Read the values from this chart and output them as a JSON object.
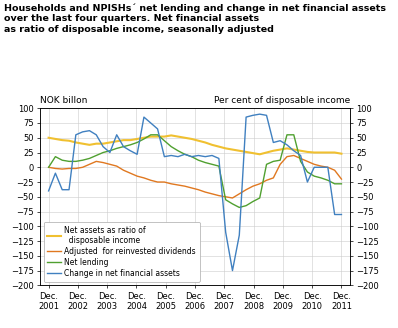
{
  "title_line1": "Households and NPISHs´ net lending and change in net financial assets",
  "title_line2": "over the last four quarters. Net financial assets",
  "title_line3": "as ratio of disposable income, seasonally adjusted",
  "ylabel_left": "NOK billon",
  "ylabel_right": "Per cent of disposable income",
  "ylim": [
    -200,
    100
  ],
  "yticks": [
    -200,
    -175,
    -150,
    -125,
    -100,
    -75,
    -50,
    -25,
    0,
    25,
    50,
    75,
    100
  ],
  "x_labels": [
    "Dec.\n2001",
    "Dec.\n2002",
    "Dec.\n2003",
    "Dec.\n2004",
    "Dec.\n2005",
    "Dec.\n2006",
    "Dec.\n2007",
    "Dec.\n2008",
    "Dec.\n2009",
    "Dec.\n2010",
    "Dec.\n2011"
  ],
  "colors": {
    "net_assets": "#f0c030",
    "adjusted": "#e07820",
    "net_lending": "#50a030",
    "change": "#4080c0"
  },
  "net_assets": [
    50,
    48,
    46,
    45,
    42,
    40,
    38,
    40,
    40,
    42,
    44,
    46,
    46,
    48,
    50,
    52,
    52,
    52,
    54,
    52,
    50,
    48,
    45,
    42,
    38,
    35,
    32,
    30,
    28,
    26,
    24,
    22,
    25,
    28,
    30,
    32,
    30,
    28,
    26,
    25,
    25,
    25,
    25,
    23
  ],
  "adjusted": [
    0,
    -2,
    -3,
    -2,
    -2,
    0,
    5,
    10,
    8,
    5,
    2,
    -5,
    -10,
    -15,
    -18,
    -22,
    -25,
    -25,
    -28,
    -30,
    -32,
    -35,
    -38,
    -42,
    -45,
    -48,
    -50,
    -52,
    -45,
    -38,
    -32,
    -28,
    -22,
    -18,
    5,
    18,
    20,
    15,
    10,
    5,
    2,
    0,
    -5,
    -20
  ],
  "net_lending": [
    0,
    18,
    12,
    10,
    10,
    12,
    15,
    20,
    25,
    28,
    32,
    35,
    38,
    42,
    48,
    55,
    55,
    45,
    35,
    28,
    22,
    18,
    12,
    8,
    5,
    2,
    -55,
    -62,
    -68,
    -65,
    -58,
    -52,
    5,
    10,
    12,
    55,
    55,
    10,
    -8,
    -15,
    -18,
    -22,
    -28,
    -28
  ],
  "change": [
    -40,
    -10,
    -38,
    -38,
    55,
    60,
    62,
    55,
    35,
    25,
    55,
    35,
    28,
    22,
    85,
    75,
    65,
    18,
    20,
    18,
    22,
    18,
    20,
    18,
    20,
    15,
    -110,
    -175,
    -115,
    85,
    88,
    90,
    88,
    42,
    45,
    38,
    28,
    20,
    -25,
    0,
    0,
    0,
    -80,
    -80
  ]
}
